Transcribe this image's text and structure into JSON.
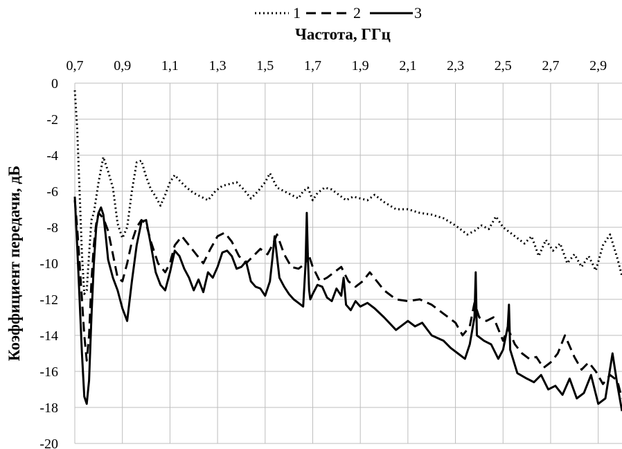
{
  "chart_data": {
    "type": "line",
    "xlabel": "Частота, ГГц",
    "ylabel": "Коэффициент передачи, дБ",
    "x_axis_position": "top",
    "xlim": [
      0.7,
      3.0
    ],
    "ylim": [
      -20,
      0
    ],
    "x_ticks": [
      0.7,
      0.9,
      1.1,
      1.3,
      1.5,
      1.7,
      1.9,
      2.1,
      2.3,
      2.5,
      2.7,
      2.9
    ],
    "x_tick_labels": [
      "0,7",
      "0,9",
      "1,1",
      "1,3",
      "1,5",
      "1,7",
      "1,9",
      "2,1",
      "2,3",
      "2,5",
      "2,7",
      "2,9"
    ],
    "y_ticks": [
      0,
      -2,
      -4,
      -6,
      -8,
      -10,
      -12,
      -14,
      -16,
      -18,
      -20
    ],
    "y_tick_labels": [
      "0",
      "-2",
      "-4",
      "-6",
      "-8",
      "-10",
      "-12",
      "-14",
      "-16",
      "-18",
      "-20"
    ],
    "grid": true,
    "legend_position": "top-center",
    "series": [
      {
        "name": "1",
        "style": "dotted",
        "color": "#000000",
        "x": [
          0.7,
          0.71,
          0.72,
          0.73,
          0.74,
          0.75,
          0.76,
          0.77,
          0.78,
          0.8,
          0.82,
          0.84,
          0.86,
          0.88,
          0.9,
          0.92,
          0.94,
          0.96,
          0.98,
          1.0,
          1.02,
          1.04,
          1.06,
          1.08,
          1.1,
          1.12,
          1.14,
          1.17,
          1.2,
          1.23,
          1.26,
          1.29,
          1.32,
          1.35,
          1.38,
          1.41,
          1.44,
          1.47,
          1.5,
          1.52,
          1.55,
          1.58,
          1.61,
          1.64,
          1.66,
          1.68,
          1.7,
          1.72,
          1.75,
          1.78,
          1.81,
          1.84,
          1.87,
          1.9,
          1.93,
          1.96,
          2.0,
          2.05,
          2.1,
          2.15,
          2.2,
          2.25,
          2.3,
          2.35,
          2.38,
          2.41,
          2.44,
          2.47,
          2.5,
          2.53,
          2.56,
          2.59,
          2.62,
          2.65,
          2.68,
          2.71,
          2.74,
          2.77,
          2.8,
          2.83,
          2.86,
          2.89,
          2.92,
          2.95,
          2.98,
          3.0
        ],
        "values": [
          -0.4,
          -2.5,
          -6.0,
          -9.5,
          -11.7,
          -11.5,
          -9.5,
          -7.6,
          -7.2,
          -5.5,
          -4.1,
          -4.9,
          -5.8,
          -7.8,
          -8.6,
          -8.0,
          -6.0,
          -4.4,
          -4.3,
          -5.2,
          -5.9,
          -6.3,
          -6.8,
          -6.2,
          -5.5,
          -5.1,
          -5.4,
          -5.8,
          -6.1,
          -6.3,
          -6.5,
          -6.0,
          -5.7,
          -5.6,
          -5.5,
          -5.9,
          -6.4,
          -6.0,
          -5.5,
          -5.0,
          -5.8,
          -6.0,
          -6.2,
          -6.4,
          -6.0,
          -5.8,
          -6.5,
          -6.1,
          -5.8,
          -5.9,
          -6.2,
          -6.5,
          -6.3,
          -6.4,
          -6.5,
          -6.2,
          -6.6,
          -7.0,
          -7.0,
          -7.2,
          -7.3,
          -7.5,
          -7.9,
          -8.4,
          -8.2,
          -7.9,
          -8.1,
          -7.4,
          -8.0,
          -8.3,
          -8.6,
          -8.9,
          -8.5,
          -9.6,
          -8.7,
          -9.3,
          -8.9,
          -10.0,
          -9.5,
          -10.2,
          -9.6,
          -10.4,
          -9.0,
          -8.4,
          -9.7,
          -10.7
        ]
      },
      {
        "name": "2",
        "style": "dashed",
        "color": "#000000",
        "x": [
          0.7,
          0.71,
          0.72,
          0.73,
          0.74,
          0.75,
          0.76,
          0.77,
          0.78,
          0.79,
          0.8,
          0.82,
          0.84,
          0.86,
          0.88,
          0.9,
          0.92,
          0.94,
          0.96,
          0.98,
          1.0,
          1.02,
          1.05,
          1.08,
          1.1,
          1.12,
          1.15,
          1.18,
          1.21,
          1.24,
          1.27,
          1.3,
          1.33,
          1.36,
          1.39,
          1.42,
          1.45,
          1.48,
          1.51,
          1.53,
          1.55,
          1.58,
          1.61,
          1.64,
          1.67,
          1.68,
          1.7,
          1.73,
          1.76,
          1.79,
          1.82,
          1.85,
          1.88,
          1.91,
          1.94,
          1.97,
          2.0,
          2.05,
          2.1,
          2.15,
          2.2,
          2.25,
          2.3,
          2.33,
          2.36,
          2.38,
          2.4,
          2.43,
          2.46,
          2.5,
          2.52,
          2.55,
          2.58,
          2.61,
          2.64,
          2.67,
          2.7,
          2.73,
          2.76,
          2.8,
          2.83,
          2.86,
          2.89,
          2.92,
          2.95,
          2.98,
          3.0
        ],
        "values": [
          -6.5,
          -8.0,
          -10.0,
          -12.0,
          -14.0,
          -15.4,
          -14.0,
          -11.0,
          -9.0,
          -7.8,
          -7.2,
          -7.5,
          -8.2,
          -9.5,
          -10.8,
          -11.0,
          -10.0,
          -8.8,
          -8.0,
          -7.6,
          -7.8,
          -8.8,
          -10.0,
          -10.5,
          -10.0,
          -9.0,
          -8.5,
          -9.0,
          -9.5,
          -10.0,
          -9.2,
          -8.5,
          -8.3,
          -8.8,
          -9.6,
          -10.0,
          -9.6,
          -9.2,
          -9.5,
          -9.0,
          -8.4,
          -9.5,
          -10.2,
          -10.3,
          -10.0,
          -9.4,
          -10.2,
          -11.0,
          -10.8,
          -10.5,
          -10.2,
          -11.0,
          -11.3,
          -11.0,
          -10.5,
          -11.0,
          -11.5,
          -12.0,
          -12.1,
          -12.0,
          -12.3,
          -12.8,
          -13.3,
          -14.0,
          -13.5,
          -12.2,
          -13.0,
          -13.2,
          -13.0,
          -14.3,
          -13.6,
          -14.5,
          -15.0,
          -15.3,
          -15.2,
          -15.8,
          -15.5,
          -15.0,
          -14.0,
          -15.2,
          -15.9,
          -15.5,
          -16.0,
          -16.7,
          -16.2,
          -16.5,
          -17.5
        ]
      },
      {
        "name": "3",
        "style": "solid",
        "color": "#000000",
        "x": [
          0.7,
          0.71,
          0.72,
          0.73,
          0.74,
          0.75,
          0.76,
          0.77,
          0.78,
          0.79,
          0.8,
          0.81,
          0.82,
          0.83,
          0.84,
          0.86,
          0.88,
          0.9,
          0.92,
          0.94,
          0.96,
          0.98,
          1.0,
          1.02,
          1.04,
          1.06,
          1.08,
          1.1,
          1.12,
          1.14,
          1.16,
          1.18,
          1.2,
          1.22,
          1.24,
          1.26,
          1.28,
          1.3,
          1.32,
          1.34,
          1.36,
          1.38,
          1.4,
          1.42,
          1.44,
          1.46,
          1.48,
          1.5,
          1.52,
          1.53,
          1.54,
          1.56,
          1.58,
          1.6,
          1.62,
          1.64,
          1.66,
          1.67,
          1.675,
          1.68,
          1.685,
          1.69,
          1.7,
          1.72,
          1.74,
          1.76,
          1.78,
          1.8,
          1.82,
          1.83,
          1.84,
          1.86,
          1.88,
          1.9,
          1.93,
          1.96,
          2.0,
          2.05,
          2.1,
          2.13,
          2.16,
          2.2,
          2.25,
          2.28,
          2.31,
          2.34,
          2.36,
          2.38,
          2.385,
          2.39,
          2.42,
          2.45,
          2.48,
          2.5,
          2.52,
          2.525,
          2.53,
          2.56,
          2.6,
          2.63,
          2.66,
          2.69,
          2.72,
          2.75,
          2.78,
          2.81,
          2.84,
          2.87,
          2.9,
          2.93,
          2.96,
          2.98,
          3.0
        ],
        "values": [
          -6.3,
          -9.0,
          -12.0,
          -15.0,
          -17.4,
          -17.8,
          -16.5,
          -13.0,
          -10.0,
          -8.0,
          -7.2,
          -6.9,
          -7.3,
          -8.5,
          -9.8,
          -10.8,
          -11.5,
          -12.5,
          -13.2,
          -11.0,
          -9.0,
          -7.7,
          -7.6,
          -9.0,
          -10.5,
          -11.2,
          -11.5,
          -10.5,
          -9.3,
          -9.6,
          -10.3,
          -10.8,
          -11.5,
          -10.9,
          -11.6,
          -10.5,
          -10.8,
          -10.2,
          -9.4,
          -9.3,
          -9.6,
          -10.3,
          -10.2,
          -9.9,
          -11.0,
          -11.3,
          -11.4,
          -11.8,
          -11.0,
          -9.8,
          -8.5,
          -10.8,
          -11.3,
          -11.7,
          -12.0,
          -12.2,
          -12.4,
          -10.0,
          -7.2,
          -9.8,
          -11.5,
          -12.0,
          -11.7,
          -11.2,
          -11.3,
          -11.9,
          -12.1,
          -11.4,
          -11.8,
          -10.8,
          -12.3,
          -12.6,
          -12.1,
          -12.4,
          -12.2,
          -12.5,
          -13.0,
          -13.7,
          -13.2,
          -13.5,
          -13.3,
          -14.0,
          -14.3,
          -14.7,
          -15.0,
          -15.3,
          -14.5,
          -13.0,
          -10.5,
          -14.0,
          -14.3,
          -14.5,
          -15.3,
          -14.8,
          -13.5,
          -12.3,
          -14.8,
          -16.1,
          -16.4,
          -16.6,
          -16.2,
          -17.0,
          -16.8,
          -17.3,
          -16.4,
          -17.5,
          -17.2,
          -16.2,
          -17.8,
          -17.5,
          -15.0,
          -16.7,
          -18.2
        ]
      }
    ]
  }
}
